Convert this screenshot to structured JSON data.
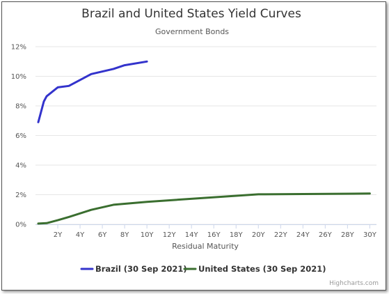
{
  "chart_data": {
    "type": "line",
    "title": "Brazil and United States Yield Curves",
    "subtitle": "Government Bonds",
    "xlabel": "Residual Maturity",
    "ylabel": "",
    "xlim": [
      0,
      30.6
    ],
    "ylim": [
      0,
      12
    ],
    "x_ticks": [
      {
        "value": 2,
        "label": "2Y"
      },
      {
        "value": 4,
        "label": "4Y"
      },
      {
        "value": 6,
        "label": "6Y"
      },
      {
        "value": 8,
        "label": "8Y"
      },
      {
        "value": 10,
        "label": "10Y"
      },
      {
        "value": 12,
        "label": "12Y"
      },
      {
        "value": 14,
        "label": "14Y"
      },
      {
        "value": 16,
        "label": "16Y"
      },
      {
        "value": 18,
        "label": "18Y"
      },
      {
        "value": 20,
        "label": "20Y"
      },
      {
        "value": 22,
        "label": "22Y"
      },
      {
        "value": 24,
        "label": "24Y"
      },
      {
        "value": 26,
        "label": "26Y"
      },
      {
        "value": 28,
        "label": "28Y"
      },
      {
        "value": 30,
        "label": "30Y"
      }
    ],
    "y_ticks": [
      {
        "value": 0,
        "label": "0%"
      },
      {
        "value": 2,
        "label": "2%"
      },
      {
        "value": 4,
        "label": "4%"
      },
      {
        "value": 6,
        "label": "6%"
      },
      {
        "value": 8,
        "label": "8%"
      },
      {
        "value": 10,
        "label": "10%"
      },
      {
        "value": 12,
        "label": "12%"
      }
    ],
    "grid": "horizontal",
    "legend_position": "bottom-center",
    "series": [
      {
        "name": "Brazil (30 Sep 2021)",
        "color": "#3333cc",
        "points": [
          {
            "x": 0.25,
            "y": 6.9
          },
          {
            "x": 0.5,
            "y": 7.6
          },
          {
            "x": 0.75,
            "y": 8.3
          },
          {
            "x": 1,
            "y": 8.65
          },
          {
            "x": 2,
            "y": 9.25
          },
          {
            "x": 3,
            "y": 9.35
          },
          {
            "x": 5,
            "y": 10.15
          },
          {
            "x": 7,
            "y": 10.5
          },
          {
            "x": 8,
            "y": 10.75
          },
          {
            "x": 10,
            "y": 11.0
          }
        ]
      },
      {
        "name": "United States (30 Sep 2021)",
        "color": "#3a6e2f",
        "points": [
          {
            "x": 0.25,
            "y": 0.05
          },
          {
            "x": 1,
            "y": 0.08
          },
          {
            "x": 2,
            "y": 0.28
          },
          {
            "x": 3,
            "y": 0.5
          },
          {
            "x": 5,
            "y": 0.98
          },
          {
            "x": 7,
            "y": 1.32
          },
          {
            "x": 10,
            "y": 1.52
          },
          {
            "x": 20,
            "y": 2.03
          },
          {
            "x": 30,
            "y": 2.08
          }
        ]
      }
    ]
  },
  "credits": "Highcharts.com"
}
